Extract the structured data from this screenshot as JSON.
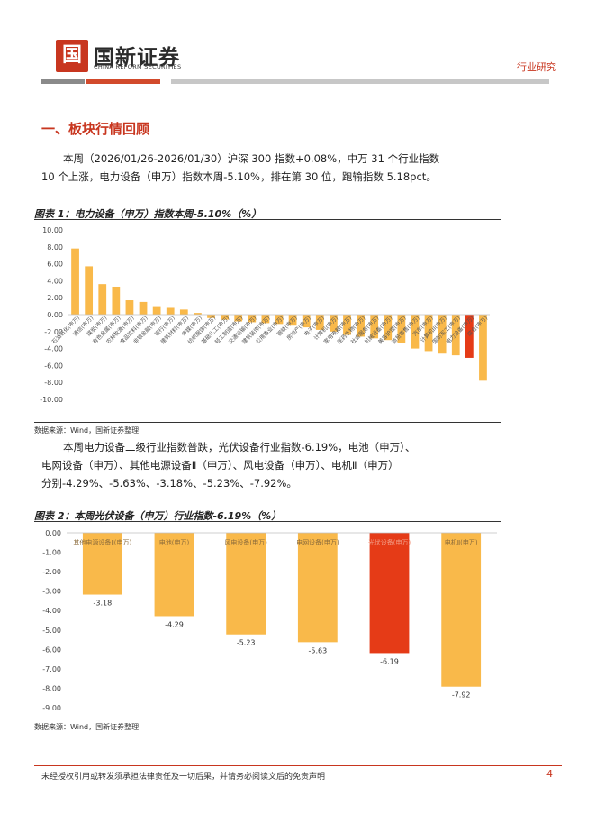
{
  "header": {
    "logo_mark": "国",
    "logo_cn": "国新证券",
    "logo_en": "CHINA REFORM SECURITIES",
    "category": "行业研究"
  },
  "section": {
    "title": "一、板块行情回顾",
    "para1_line1": "本周（2026/01/26-2026/01/30）沪深 300 指数+0.08%，中万 31 个行业指数",
    "para1_line2": "10 个上涨，电力设备（申万）指数本周-5.10%，排在第 30 位，跑输指数 5.18pct。",
    "para2_line1": "本周电力设备二级行业指数普跌，光伏设备行业指数-6.19%，电池（申万）、",
    "para2_line2": "电网设备（申万）、其他电源设备Ⅱ（申万）、风电设备（申万）、电机Ⅱ（申万）",
    "para2_line3": "分别-4.29%、-5.63%、-3.18%、-5.23%、-7.92%。"
  },
  "figure1": {
    "title": "图表 1：电力设备（申万）指数本周-5.10%（%）",
    "source": "数据来源：Wind，国新证券整理"
  },
  "figure2": {
    "title": "图表 2：本周光伏设备（申万）行业指数-6.19%（%）",
    "source": "数据来源：Wind，国新证券整理"
  },
  "footer": {
    "disclaimer": "未经授权引用或转发须承担法律责任及一切后果，并请务必阅读文后的免责声明",
    "page": "4"
  },
  "colors": {
    "accent_red": "#c8361f",
    "bar_yellow": "#f9b94a",
    "bar_highlight": "#e53b17"
  },
  "chart_data": [
    {
      "type": "bar",
      "title": "图表 1：电力设备（申万）指数本周-5.10%（%）",
      "ylim": [
        -10,
        10
      ],
      "yticks": [
        "10.00",
        "8.00",
        "6.00",
        "4.00",
        "2.00",
        "0.00",
        "-2.00",
        "-4.00",
        "-6.00",
        "-8.00",
        "-10.00"
      ],
      "categories": [
        "石油石化(申万)",
        "通信(申万)",
        "煤炭(申万)",
        "有色金属(申万)",
        "农林牧渔(申万)",
        "食品饮料(申万)",
        "非银金融(申万)",
        "银行(申万)",
        "建筑材料(申万)",
        "传媒(申万)",
        "纺织服饰(申万)",
        "基础化工(申万)",
        "轻工制造(申万)",
        "交通运输(申万)",
        "建筑装饰(申万)",
        "公用事业(申万)",
        "钢铁(申万)",
        "房地产(申万)",
        "电子(申万)",
        "计算机(申万)",
        "家用电器(申万)",
        "医药生物(申万)",
        "社会服务(申万)",
        "机械设备(申万)",
        "美容护理(申万)",
        "商贸零售(申万)",
        "汽车(申万)",
        "计算机II(申万)",
        "国防军工(申万)",
        "电力设备(申万)",
        "综合(申万)"
      ],
      "values": [
        7.8,
        5.7,
        3.6,
        3.3,
        1.7,
        1.5,
        1.0,
        0.8,
        0.6,
        0.2,
        -0.4,
        -0.6,
        -0.8,
        -0.9,
        -1.0,
        -1.1,
        -1.3,
        -1.5,
        -1.8,
        -2.0,
        -2.4,
        -2.6,
        -2.8,
        -3.0,
        -3.4,
        -4.0,
        -4.3,
        -4.6,
        -4.8,
        -5.1,
        -7.8
      ],
      "highlight_index": 29
    },
    {
      "type": "bar",
      "title": "图表 2：本周光伏设备（申万）行业指数-6.19%（%）",
      "ylim": [
        -9,
        0
      ],
      "yticks": [
        "0.00",
        "-1.00",
        "-2.00",
        "-3.00",
        "-4.00",
        "-5.00",
        "-6.00",
        "-7.00",
        "-8.00",
        "-9.00"
      ],
      "categories": [
        "其他电源设备Ⅱ(申万)",
        "电池(申万)",
        "风电设备(申万)",
        "电网设备(申万)",
        "光伏设备(申万)",
        "电机Ⅱ(申万)"
      ],
      "values": [
        -3.18,
        -4.29,
        -5.23,
        -5.63,
        -6.19,
        -7.92
      ],
      "data_labels": [
        "-3.18",
        "-4.29",
        "-5.23",
        "-5.63",
        "-6.19",
        "-7.92"
      ],
      "highlight_index": 4
    }
  ]
}
